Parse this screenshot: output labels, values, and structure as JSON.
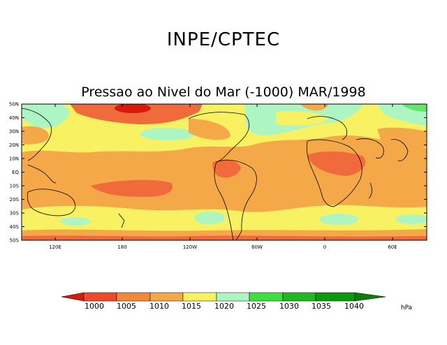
{
  "header": {
    "org_title": "INPE/CPTEC",
    "map_title": "Pressao ao Nivel do Mar (-1000) MAR/1998"
  },
  "map": {
    "lat_ticks": [
      "50N",
      "40N",
      "30N",
      "20N",
      "10N",
      "EQ",
      "10S",
      "20S",
      "30S",
      "40S",
      "50S"
    ],
    "lon_ticks": [
      "120E",
      "180",
      "120W",
      "60W",
      "0",
      "60E"
    ]
  },
  "colorbar": {
    "levels": [
      "1000",
      "1005",
      "1010",
      "1015",
      "1020",
      "1025",
      "1030",
      "1035",
      "1040"
    ],
    "unit": "hPa",
    "colors": [
      "#d81a0a",
      "#f04a2a",
      "#f2883a",
      "#f4a848",
      "#f8f262",
      "#aef5c4",
      "#3ee040",
      "#22b822",
      "#0c9a0c",
      "#0a7d0a"
    ]
  },
  "palette": {
    "p1005": "#f06a3c",
    "p1010": "#f4a848",
    "p1015": "#f8f262",
    "p1020": "#aef5c4",
    "p1025": "#62e66a",
    "p1030": "#22b822",
    "land": "#000000"
  }
}
